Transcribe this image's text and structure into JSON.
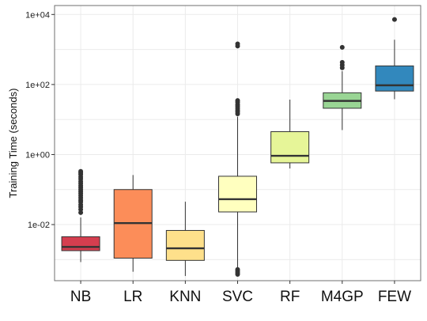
{
  "chart_data": {
    "type": "box",
    "ylabel": "Training Time (seconds)",
    "xlabel": "",
    "yscale": "log10",
    "ylim": [
      0.00025,
      18000
    ],
    "yticks": [
      {
        "value": 0.01,
        "label": "1e-02"
      },
      {
        "value": 1,
        "label": "1e+00"
      },
      {
        "value": 100,
        "label": "1e+02"
      },
      {
        "value": 10000,
        "label": "1e+04"
      }
    ],
    "grid": true,
    "legend": "none",
    "categories": [
      "NB",
      "LR",
      "KNN",
      "SVC",
      "RF",
      "M4GP",
      "FEW"
    ],
    "boxes": [
      {
        "name": "NB",
        "color": "#d53e4f",
        "min": 0.00085,
        "q1": 0.0018,
        "median": 0.0023,
        "q3": 0.0045,
        "max": 0.016,
        "outliers": [
          0.022,
          0.027,
          0.032,
          0.037,
          0.044,
          0.05,
          0.058,
          0.067,
          0.077,
          0.088,
          0.1,
          0.115,
          0.13,
          0.15,
          0.17,
          0.2,
          0.23,
          0.27,
          0.3,
          0.33
        ]
      },
      {
        "name": "LR",
        "color": "#fc8d59",
        "min": 0.00045,
        "q1": 0.0011,
        "median": 0.011,
        "q3": 0.1,
        "max": 0.26
      },
      {
        "name": "KNN",
        "color": "#fee08b",
        "min": 0.00034,
        "q1": 0.00095,
        "median": 0.0021,
        "q3": 0.0068,
        "max": 0.045
      },
      {
        "name": "SVC",
        "color": "#ffffbf",
        "min": 0.0006,
        "q1": 0.023,
        "median": 0.053,
        "q3": 0.24,
        "max": 12,
        "outliers": [
          0.00038,
          0.00042,
          0.00047,
          0.00052,
          14.5,
          16.5,
          18.5,
          21,
          24,
          27,
          31,
          35,
          1250,
          1450
        ]
      },
      {
        "name": "RF",
        "color": "#e6f598",
        "min": 0.4,
        "q1": 0.58,
        "median": 0.92,
        "q3": 4.5,
        "max": 37
      },
      {
        "name": "M4GP",
        "color": "#99d594",
        "min": 5,
        "q1": 21,
        "median": 34,
        "q3": 58,
        "max": 240,
        "outliers": [
          300,
          360,
          430,
          1150
        ]
      },
      {
        "name": "FEW",
        "color": "#3288bd",
        "min": 38,
        "q1": 65,
        "median": 95,
        "q3": 340,
        "max": 1900,
        "outliers": [
          7200
        ]
      }
    ]
  }
}
